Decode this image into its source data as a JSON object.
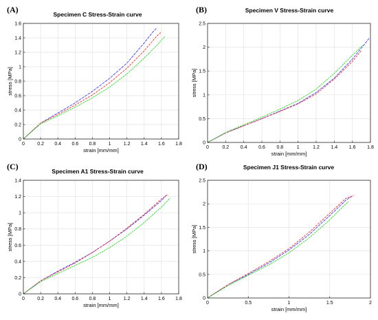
{
  "figure": {
    "panels": [
      "A",
      "B",
      "C",
      "D"
    ]
  },
  "chart_data": [
    {
      "panel_label": "(A)",
      "type": "line",
      "title": "Specimen C Stress-Strain curve",
      "xlabel": "strain [mm/mm]",
      "ylabel": "stress [MPa]",
      "xlim": [
        0,
        1.8
      ],
      "ylim": [
        0,
        1.6
      ],
      "xticks": [
        0,
        0.2,
        0.4,
        0.6,
        0.8,
        1,
        1.2,
        1.4,
        1.6,
        1.8
      ],
      "yticks": [
        0,
        0.2,
        0.4,
        0.6,
        0.8,
        1,
        1.2,
        1.4,
        1.6
      ],
      "grid": true,
      "series": [
        {
          "color": "#3d3dff",
          "x": [
            0,
            0.2,
            0.4,
            0.6,
            0.8,
            1.0,
            1.2,
            1.4,
            1.5,
            1.54
          ],
          "y": [
            0,
            0.22,
            0.36,
            0.5,
            0.66,
            0.84,
            1.05,
            1.33,
            1.48,
            1.53
          ]
        },
        {
          "color": "#ff2a2a",
          "x": [
            0,
            0.2,
            0.4,
            0.6,
            0.8,
            1.0,
            1.2,
            1.4,
            1.55,
            1.6
          ],
          "y": [
            0,
            0.22,
            0.34,
            0.47,
            0.61,
            0.78,
            0.98,
            1.22,
            1.43,
            1.48
          ]
        },
        {
          "color": "#22dd22",
          "x": [
            0,
            0.2,
            0.4,
            0.6,
            0.8,
            1.0,
            1.2,
            1.4,
            1.55,
            1.64
          ],
          "y": [
            0,
            0.21,
            0.32,
            0.44,
            0.57,
            0.72,
            0.9,
            1.12,
            1.3,
            1.42
          ]
        }
      ]
    },
    {
      "panel_label": "(B)",
      "type": "line",
      "title": "Specimen V Stress-Strain curve",
      "xlabel": "strain [mm/mm]",
      "ylabel": "stress [MPa]",
      "xlim": [
        0,
        1.8
      ],
      "ylim": [
        0,
        2.5
      ],
      "xticks": [
        0,
        0.2,
        0.4,
        0.6,
        0.8,
        1,
        1.2,
        1.4,
        1.6,
        1.8
      ],
      "yticks": [
        0,
        0.5,
        1,
        1.5,
        2,
        2.5
      ],
      "grid": true,
      "series": [
        {
          "color": "#3d3dff",
          "x": [
            0,
            0.2,
            0.4,
            0.6,
            0.8,
            1.0,
            1.2,
            1.4,
            1.6,
            1.75,
            1.79
          ],
          "y": [
            0,
            0.2,
            0.35,
            0.5,
            0.66,
            0.82,
            1.05,
            1.35,
            1.75,
            2.1,
            2.2
          ]
        },
        {
          "color": "#ff2a2a",
          "x": [
            0,
            0.2,
            0.4,
            0.6,
            0.8,
            1.0,
            1.2,
            1.4,
            1.6,
            1.7
          ],
          "y": [
            0,
            0.2,
            0.35,
            0.5,
            0.65,
            0.81,
            1.02,
            1.33,
            1.7,
            1.93
          ]
        },
        {
          "color": "#22dd22",
          "x": [
            0,
            0.2,
            0.4,
            0.6,
            0.8,
            1.0,
            1.2,
            1.4,
            1.6,
            1.72
          ],
          "y": [
            0,
            0.21,
            0.37,
            0.53,
            0.7,
            0.88,
            1.12,
            1.45,
            1.83,
            2.05
          ]
        }
      ]
    },
    {
      "panel_label": "(C)",
      "type": "line",
      "title": "Specimen A1 Stress-Strain curve",
      "xlabel": "strain [mm/mm]",
      "ylabel": "stress [MPa]",
      "xlim": [
        0,
        1.8
      ],
      "ylim": [
        0,
        1.4
      ],
      "xticks": [
        0,
        0.2,
        0.4,
        0.6,
        0.8,
        1,
        1.2,
        1.4,
        1.6,
        1.8
      ],
      "yticks": [
        0,
        0.2,
        0.4,
        0.6,
        0.8,
        1,
        1.2,
        1.4
      ],
      "grid": true,
      "series": [
        {
          "color": "#3d3dff",
          "x": [
            0,
            0.2,
            0.4,
            0.6,
            0.8,
            1.0,
            1.2,
            1.4,
            1.6,
            1.66
          ],
          "y": [
            0,
            0.16,
            0.28,
            0.39,
            0.51,
            0.65,
            0.8,
            0.97,
            1.15,
            1.22
          ]
        },
        {
          "color": "#ff2a2a",
          "x": [
            0,
            0.2,
            0.4,
            0.6,
            0.8,
            1.0,
            1.2,
            1.4,
            1.6,
            1.68
          ],
          "y": [
            0,
            0.16,
            0.27,
            0.38,
            0.51,
            0.65,
            0.81,
            0.98,
            1.17,
            1.23
          ]
        },
        {
          "color": "#22dd22",
          "x": [
            0,
            0.2,
            0.4,
            0.6,
            0.8,
            1.0,
            1.2,
            1.4,
            1.6,
            1.7
          ],
          "y": [
            0,
            0.15,
            0.25,
            0.35,
            0.45,
            0.57,
            0.71,
            0.88,
            1.07,
            1.18
          ]
        }
      ]
    },
    {
      "panel_label": "(D)",
      "type": "line",
      "title": "Specimen J1 Stress-Strain curve",
      "xlabel": "strain [mm/mm]",
      "ylabel": "stress [MPa]",
      "xlim": [
        0,
        2
      ],
      "ylim": [
        0,
        2.5
      ],
      "xticks": [
        0,
        0.5,
        1,
        1.5,
        2
      ],
      "yticks": [
        0,
        0.5,
        1,
        1.5,
        2,
        2.5
      ],
      "grid": true,
      "series": [
        {
          "color": "#3d3dff",
          "x": [
            0,
            0.25,
            0.5,
            0.75,
            1.0,
            1.25,
            1.5,
            1.7,
            1.78
          ],
          "y": [
            0,
            0.28,
            0.5,
            0.74,
            1.02,
            1.35,
            1.75,
            2.08,
            2.17
          ]
        },
        {
          "color": "#ff2a2a",
          "x": [
            0,
            0.25,
            0.5,
            0.75,
            1.0,
            1.25,
            1.5,
            1.7,
            1.8
          ],
          "y": [
            0,
            0.28,
            0.52,
            0.77,
            1.05,
            1.4,
            1.8,
            2.12,
            2.18
          ]
        },
        {
          "color": "#22dd22",
          "x": [
            0,
            0.25,
            0.5,
            0.75,
            1.0,
            1.25,
            1.5,
            1.65,
            1.73
          ],
          "y": [
            0,
            0.26,
            0.48,
            0.7,
            0.96,
            1.28,
            1.66,
            1.92,
            2.05
          ]
        }
      ]
    }
  ]
}
